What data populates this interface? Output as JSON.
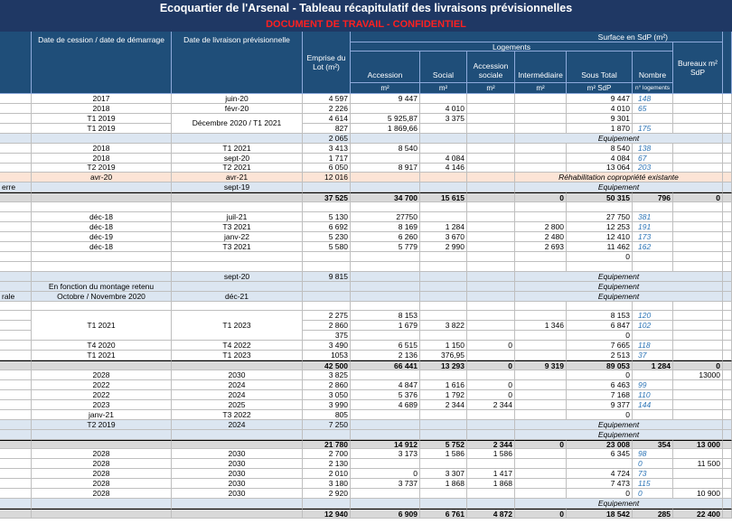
{
  "header": {
    "title": "Ecoquartier de l'Arsenal - Tableau récapitulatif des livraisons prévisionnelles",
    "subtitle": "DOCUMENT DE TRAVAIL - CONFIDENTIEL",
    "surface": "Surface en SdP (m²)",
    "logements": "Logements",
    "columns": [
      "Date de cession / date de démarrage",
      "Date de livraison prévisionnelle",
      "Emprise du Lot (m²)",
      "Accession",
      "Social",
      "Accession sociale",
      "Intermédiaire",
      "Sous Total",
      "Nombre",
      "Bureaux m² SdP"
    ],
    "units": [
      "m²",
      "m²",
      "m²",
      "m²",
      "m² SdP",
      "n° logements"
    ]
  },
  "table": {
    "rows": [
      [
        null,
        "2017",
        "juin-20",
        "4 597",
        "9 447",
        null,
        null,
        null,
        "9 447",
        "148",
        null,
        null
      ],
      [
        null,
        "2018",
        "févr-20",
        "2 226",
        null,
        "4 010",
        null,
        null,
        "4 010",
        "65",
        null,
        null
      ],
      [
        null,
        "T1 2019",
        "Décembre 2020 / T1 2021",
        "4 614",
        "5 925,87",
        "3 375",
        null,
        null,
        "9 301",
        null,
        null,
        null
      ],
      [
        null,
        "T1 2019",
        null,
        "827",
        "1 869,66",
        null,
        null,
        null,
        "1 870",
        "175",
        null,
        null
      ],
      [
        null,
        null,
        null,
        "2 065",
        null,
        null,
        null,
        "Equipement",
        null,
        null,
        null,
        null
      ],
      [
        null,
        "2018",
        "T1 2021",
        "3 413",
        "8 540",
        null,
        null,
        null,
        "8 540",
        "138",
        null,
        null
      ],
      [
        null,
        "2018",
        "sept-20",
        "1 717",
        null,
        "4 084",
        null,
        null,
        "4 084",
        "67",
        null,
        null
      ],
      [
        null,
        "T2 2019",
        "T2 2021",
        "6 050",
        "8 917",
        "4 146",
        null,
        null,
        "13 064",
        "203",
        null,
        null
      ],
      [
        null,
        "avr-20",
        "avr-21",
        "12 016",
        null,
        null,
        null,
        "Réhabilitation copropriété existante",
        null,
        null,
        null,
        null
      ],
      [
        "erre",
        null,
        "sept-19",
        null,
        null,
        null,
        null,
        "Equipement",
        null,
        null,
        null,
        null
      ],
      [
        null,
        null,
        null,
        "37 525",
        "34 700",
        "15 615",
        null,
        "0",
        "50 315",
        "796",
        "0",
        null
      ],
      [
        null,
        null,
        null,
        null,
        null,
        null,
        null,
        null,
        null,
        null,
        null,
        null
      ],
      [
        null,
        "déc-18",
        "juil-21",
        "5 130",
        "27750",
        null,
        null,
        null,
        "27 750",
        "381",
        null,
        null
      ],
      [
        null,
        "déc-18",
        "T3 2021",
        "6 692",
        "8 169",
        "1 284",
        null,
        "2 800",
        "12 253",
        "191",
        null,
        null
      ],
      [
        null,
        "déc-19",
        "janv-22",
        "5 230",
        "6 260",
        "3 670",
        null,
        "2 480",
        "12 410",
        "173",
        null,
        null
      ],
      [
        null,
        "déc-18",
        "T3 2021",
        "5 580",
        "5 779",
        "2 990",
        null,
        "2 693",
        "11 462",
        "162",
        null,
        null
      ],
      [
        null,
        null,
        null,
        null,
        null,
        null,
        null,
        null,
        "0",
        null,
        null,
        null
      ],
      [
        null,
        null,
        null,
        null,
        null,
        null,
        null,
        null,
        null,
        null,
        null,
        null
      ],
      [
        null,
        null,
        "sept-20",
        "9 815",
        null,
        null,
        null,
        "Equipement",
        null,
        null,
        null,
        null
      ],
      [
        null,
        "En fonction du montage retenu",
        null,
        null,
        null,
        null,
        null,
        "Equipement",
        null,
        null,
        null,
        null
      ],
      [
        "rale",
        "Octobre / Novembre 2020",
        "déc-21",
        null,
        null,
        null,
        null,
        "Equipement",
        null,
        null,
        null,
        null
      ],
      [
        null,
        null,
        null,
        null,
        null,
        null,
        null,
        null,
        null,
        null,
        null,
        null
      ],
      [
        null,
        "T1 2021",
        "T1 2023",
        "2 275",
        "8 153",
        null,
        null,
        null,
        "8 153",
        "120",
        null,
        null
      ],
      [
        null,
        null,
        null,
        "2 860",
        "1 679",
        "3 822",
        null,
        "1 346",
        "6 847",
        "102",
        null,
        null
      ],
      [
        null,
        null,
        null,
        "375",
        null,
        null,
        null,
        null,
        "0",
        null,
        null,
        null
      ],
      [
        null,
        "T4 2020",
        "T4 2022",
        "3 490",
        "6 515",
        "1 150",
        "0",
        null,
        "7 665",
        "118",
        null,
        null
      ],
      [
        null,
        "T1 2021",
        "T1 2023",
        "1053",
        "2 136",
        "376,95",
        null,
        null,
        "2 513",
        "37",
        null,
        null
      ],
      [
        null,
        null,
        null,
        "42 500",
        "66 441",
        "13 293",
        "0",
        "9 319",
        "89 053",
        "1 284",
        "0",
        null
      ],
      [
        null,
        "2028",
        "2030",
        "3 825",
        null,
        null,
        null,
        null,
        "0",
        null,
        "13000",
        null
      ],
      [
        null,
        "2022",
        "2024",
        "2 860",
        "4 847",
        "1 616",
        "0",
        null,
        "6 463",
        "99",
        null,
        null
      ],
      [
        null,
        "2022",
        "2024",
        "3 050",
        "5 376",
        "1 792",
        "0",
        null,
        "7 168",
        "110",
        null,
        null
      ],
      [
        null,
        "2023",
        "2025",
        "3 990",
        "4 689",
        "2 344",
        "2 344",
        null,
        "9 377",
        "144",
        null,
        null
      ],
      [
        null,
        "janv-21",
        "T3 2022",
        "805",
        null,
        null,
        null,
        null,
        "0",
        null,
        null,
        null
      ],
      [
        null,
        "T2 2019",
        "2024",
        "7 250",
        null,
        null,
        null,
        "Equipement",
        null,
        null,
        null,
        null
      ],
      [
        null,
        null,
        null,
        null,
        null,
        null,
        null,
        "Equipement",
        null,
        null,
        null,
        null
      ],
      [
        null,
        null,
        null,
        "21 780",
        "14 912",
        "5 752",
        "2 344",
        "0",
        "23 008",
        "354",
        "13 000",
        null
      ],
      [
        null,
        "2028",
        "2030",
        "2 700",
        "3 173",
        "1 586",
        "1 586",
        null,
        "6 345",
        "98",
        null,
        null
      ],
      [
        null,
        "2028",
        "2030",
        "2 130",
        null,
        null,
        null,
        null,
        null,
        "0",
        "11 500",
        null
      ],
      [
        null,
        "2028",
        "2030",
        "2 010",
        "0",
        "3 307",
        "1 417",
        null,
        "4 724",
        "73",
        null,
        null
      ],
      [
        null,
        "2028",
        "2030",
        "3 180",
        "3 737",
        "1 868",
        "1 868",
        null,
        "7 473",
        "115",
        null,
        null
      ],
      [
        null,
        "2028",
        "2030",
        "2 920",
        null,
        null,
        null,
        null,
        "0",
        "0",
        "10 900",
        null
      ],
      [
        null,
        null,
        null,
        null,
        null,
        null,
        null,
        "Equipement",
        null,
        null,
        null,
        null
      ],
      [
        null,
        null,
        null,
        "12 940",
        "6 909",
        "6 761",
        "4 872",
        "0",
        "18 542",
        "285",
        "22 400",
        null
      ]
    ]
  }
}
